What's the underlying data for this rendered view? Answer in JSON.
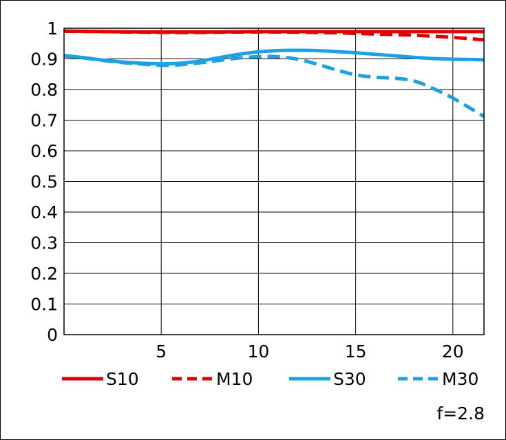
{
  "chart_data": {
    "type": "line",
    "title": "",
    "xlabel": "",
    "ylabel": "",
    "xlim": [
      0,
      21.6
    ],
    "ylim": [
      0,
      1
    ],
    "x_ticks": [
      5,
      10,
      15,
      20
    ],
    "y_ticks": [
      0,
      0.1,
      0.2,
      0.3,
      0.4,
      0.5,
      0.6,
      0.7,
      0.8,
      0.9,
      1
    ],
    "y_tick_labels": [
      "0",
      "0.1",
      "0.2",
      "0.3",
      "0.4",
      "0.5",
      "0.6",
      "0.7",
      "0.8",
      "0.9",
      "1"
    ],
    "x_tick_labels": [
      "5",
      "10",
      "15",
      "20"
    ],
    "grid": true,
    "legend_position": "bottom",
    "annotation": "f=2.8",
    "series": [
      {
        "name": "S10",
        "color": "#e00000",
        "dash": "solid",
        "x": [
          0,
          2,
          4,
          6,
          8,
          10,
          12,
          14,
          16,
          18,
          20,
          21.6
        ],
        "y": [
          0.991,
          0.989,
          0.988,
          0.988,
          0.988,
          0.989,
          0.989,
          0.989,
          0.989,
          0.989,
          0.989,
          0.989
        ]
      },
      {
        "name": "M10",
        "color": "#e00000",
        "dash": "dashed",
        "x": [
          0,
          2,
          4,
          6,
          8,
          10,
          12,
          14,
          16,
          18,
          20,
          21.6
        ],
        "y": [
          0.99,
          0.989,
          0.987,
          0.986,
          0.987,
          0.988,
          0.987,
          0.985,
          0.981,
          0.977,
          0.97,
          0.962
        ]
      },
      {
        "name": "S30",
        "color": "#1ea0e6",
        "dash": "solid",
        "x": [
          0,
          1,
          2,
          3,
          4,
          5,
          6,
          7,
          8,
          9,
          10,
          11,
          12,
          13,
          14,
          15,
          16,
          17,
          18,
          19,
          20,
          21,
          21.6
        ],
        "y": [
          0.911,
          0.904,
          0.896,
          0.89,
          0.886,
          0.884,
          0.886,
          0.893,
          0.904,
          0.915,
          0.923,
          0.927,
          0.928,
          0.927,
          0.924,
          0.92,
          0.915,
          0.91,
          0.905,
          0.901,
          0.899,
          0.898,
          0.897
        ]
      },
      {
        "name": "M30",
        "color": "#1ea0e6",
        "dash": "dashed",
        "x": [
          0,
          1,
          2,
          3,
          4,
          5,
          6,
          7,
          8,
          9,
          10,
          11,
          12,
          13,
          14,
          15,
          16,
          17,
          18,
          19,
          20,
          21,
          21.6
        ],
        "y": [
          0.91,
          0.903,
          0.895,
          0.888,
          0.883,
          0.879,
          0.881,
          0.887,
          0.895,
          0.903,
          0.907,
          0.907,
          0.899,
          0.883,
          0.864,
          0.848,
          0.84,
          0.837,
          0.828,
          0.803,
          0.772,
          0.735,
          0.712
        ]
      }
    ]
  }
}
